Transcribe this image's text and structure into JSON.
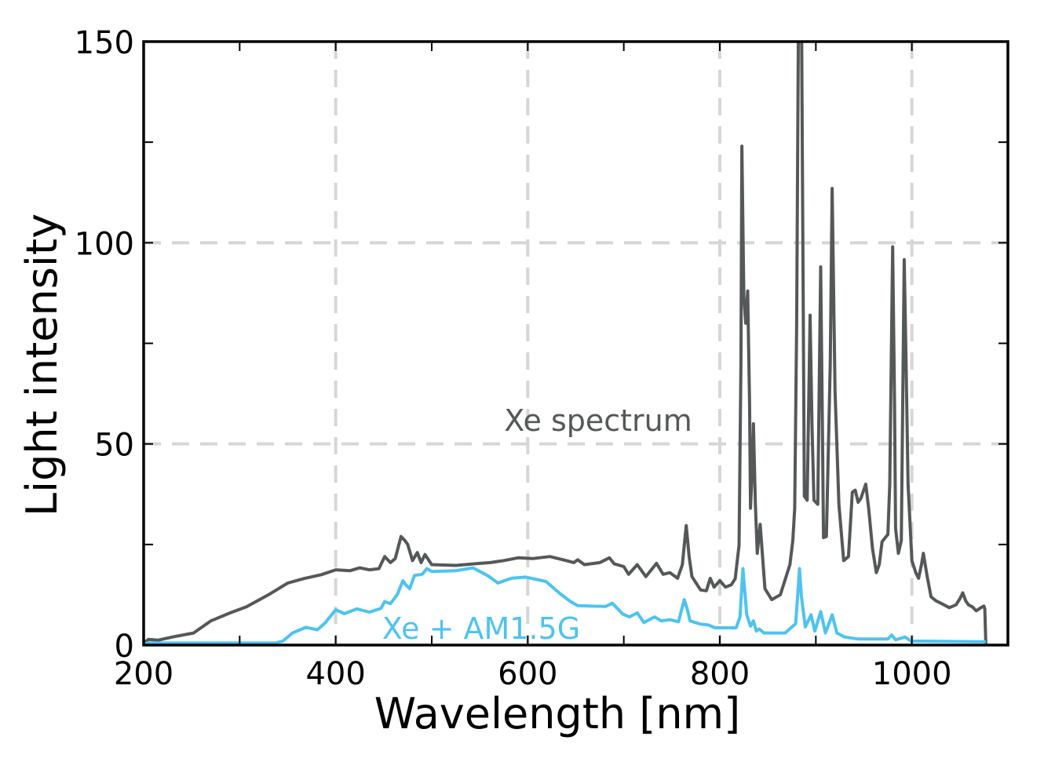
{
  "chart_data": {
    "type": "line",
    "title": "",
    "xlabel": "Wavelength [nm]",
    "ylabel": "Light intensity",
    "xlim": [
      200,
      1100
    ],
    "ylim": [
      0,
      150
    ],
    "grid": true,
    "xticks": [
      200,
      400,
      600,
      800,
      1000
    ],
    "xtick_labels": [
      "200",
      "400",
      "600",
      "800",
      "1000"
    ],
    "xticks_minor": [
      300,
      500,
      700,
      900
    ],
    "yticks": [
      0,
      50,
      100,
      150
    ],
    "ytick_labels": [
      "0",
      "50",
      "100",
      "150"
    ],
    "yticks_minor": [
      25,
      75,
      125
    ],
    "colors": {
      "xe": "#555859",
      "xe_am": "#4dc3f0",
      "grid": "#d6d6d6"
    },
    "series": [
      {
        "name": "Xe spectrum",
        "label": "Xe spectrum",
        "color": "#555859",
        "points": [
          [
            200,
            0.5
          ],
          [
            205,
            1.4
          ],
          [
            215,
            1.2
          ],
          [
            230,
            2
          ],
          [
            252,
            3
          ],
          [
            270,
            6
          ],
          [
            290,
            8
          ],
          [
            307,
            9.5
          ],
          [
            330,
            12.5
          ],
          [
            350,
            15.4
          ],
          [
            368,
            16.6
          ],
          [
            385,
            17.5
          ],
          [
            400,
            18.7
          ],
          [
            415,
            18.5
          ],
          [
            425,
            19.2
          ],
          [
            435,
            18.7
          ],
          [
            445,
            19
          ],
          [
            451,
            22
          ],
          [
            457,
            20.5
          ],
          [
            462,
            21.5
          ],
          [
            468,
            27
          ],
          [
            472,
            26
          ],
          [
            475,
            25
          ],
          [
            480,
            21
          ],
          [
            485,
            23
          ],
          [
            489,
            20.5
          ],
          [
            493,
            22.5
          ],
          [
            500,
            20
          ],
          [
            525,
            19.8
          ],
          [
            545,
            20.2
          ],
          [
            561,
            20.5
          ],
          [
            575,
            21
          ],
          [
            590,
            21.7
          ],
          [
            605,
            21.5
          ],
          [
            623,
            22
          ],
          [
            640,
            21
          ],
          [
            648,
            20.5
          ],
          [
            652,
            21.2
          ],
          [
            659,
            20
          ],
          [
            675,
            20.5
          ],
          [
            685,
            21.7
          ],
          [
            690,
            20.2
          ],
          [
            700,
            19.5
          ],
          [
            705,
            17.6
          ],
          [
            714,
            20
          ],
          [
            723,
            17
          ],
          [
            734,
            20.3
          ],
          [
            741,
            17.6
          ],
          [
            748,
            18
          ],
          [
            756,
            16.6
          ],
          [
            761,
            20
          ],
          [
            765,
            29.7
          ],
          [
            768,
            22
          ],
          [
            771,
            17
          ],
          [
            780,
            13.7
          ],
          [
            786,
            13.5
          ],
          [
            790,
            16.6
          ],
          [
            794,
            14.4
          ],
          [
            800,
            16
          ],
          [
            806,
            14.4
          ],
          [
            812,
            15
          ],
          [
            816,
            16.5
          ],
          [
            820,
            24.8
          ],
          [
            822,
            70
          ],
          [
            823,
            124
          ],
          [
            825,
            86.6
          ],
          [
            827,
            80
          ],
          [
            829,
            88
          ],
          [
            831,
            60
          ],
          [
            832,
            34
          ],
          [
            834,
            45
          ],
          [
            835,
            55
          ],
          [
            837,
            35
          ],
          [
            839,
            22.8
          ],
          [
            842,
            30
          ],
          [
            847,
            14
          ],
          [
            854,
            11.3
          ],
          [
            863,
            12.5
          ],
          [
            873,
            20
          ],
          [
            876,
            26
          ],
          [
            878,
            34
          ],
          [
            880,
            80
          ],
          [
            882,
            160
          ],
          [
            885,
            160
          ],
          [
            887,
            80
          ],
          [
            888,
            37
          ],
          [
            891,
            36
          ],
          [
            894,
            82
          ],
          [
            896,
            55
          ],
          [
            898,
            36
          ],
          [
            902,
            35
          ],
          [
            905,
            94
          ],
          [
            907,
            50
          ],
          [
            908,
            26.7
          ],
          [
            911,
            27
          ],
          [
            915,
            70
          ],
          [
            917,
            113.5
          ],
          [
            920,
            63
          ],
          [
            924,
            35
          ],
          [
            929,
            21
          ],
          [
            934,
            22
          ],
          [
            938,
            38
          ],
          [
            941,
            38.5
          ],
          [
            944,
            35.5
          ],
          [
            947,
            36.5
          ],
          [
            952,
            40
          ],
          [
            955,
            34
          ],
          [
            959,
            24
          ],
          [
            963,
            18
          ],
          [
            966,
            20
          ],
          [
            969,
            25.7
          ],
          [
            975,
            27.5
          ],
          [
            977,
            40
          ],
          [
            980,
            99
          ],
          [
            982,
            60
          ],
          [
            983,
            29
          ],
          [
            986,
            22.8
          ],
          [
            989,
            26
          ],
          [
            992,
            95.8
          ],
          [
            994,
            70
          ],
          [
            996,
            40
          ],
          [
            1000,
            21
          ],
          [
            1004,
            18
          ],
          [
            1007,
            16.6
          ],
          [
            1010,
            20
          ],
          [
            1012,
            22.8
          ],
          [
            1016,
            17
          ],
          [
            1020,
            12
          ],
          [
            1025,
            11
          ],
          [
            1031,
            10.3
          ],
          [
            1039,
            9.3
          ],
          [
            1046,
            10
          ],
          [
            1050,
            11.5
          ],
          [
            1053,
            13
          ],
          [
            1056,
            11
          ],
          [
            1059,
            10
          ],
          [
            1063,
            9.5
          ],
          [
            1067,
            8.5
          ],
          [
            1072,
            9.3
          ],
          [
            1075,
            9.7
          ],
          [
            1076,
            9
          ],
          [
            1077,
            0
          ]
        ]
      },
      {
        "name": "Xe + AM1.5G",
        "label": "Xe + AM1.5G",
        "color": "#4dc3f0",
        "points": [
          [
            200,
            0.3
          ],
          [
            205,
            0.5
          ],
          [
            250,
            0.5
          ],
          [
            300,
            0.5
          ],
          [
            337,
            0.5
          ],
          [
            345,
            1
          ],
          [
            355,
            3
          ],
          [
            369,
            4.4
          ],
          [
            381,
            3.8
          ],
          [
            389,
            5.5
          ],
          [
            400,
            8.8
          ],
          [
            409,
            7.8
          ],
          [
            422,
            9
          ],
          [
            435,
            8.2
          ],
          [
            447,
            9.1
          ],
          [
            451,
            10.8
          ],
          [
            457,
            10.3
          ],
          [
            464,
            12.5
          ],
          [
            470,
            16
          ],
          [
            473,
            15
          ],
          [
            477,
            14
          ],
          [
            482,
            17.3
          ],
          [
            490,
            17.6
          ],
          [
            495,
            19
          ],
          [
            500,
            18.3
          ],
          [
            525,
            18.5
          ],
          [
            543,
            19.2
          ],
          [
            558,
            17.3
          ],
          [
            569,
            15.4
          ],
          [
            583,
            16.6
          ],
          [
            598,
            16.9
          ],
          [
            619,
            15.8
          ],
          [
            633,
            12.9
          ],
          [
            644,
            10.9
          ],
          [
            652,
            9.8
          ],
          [
            681,
            9.6
          ],
          [
            688,
            10.4
          ],
          [
            699,
            7.7
          ],
          [
            706,
            7
          ],
          [
            714,
            8
          ],
          [
            721,
            5.6
          ],
          [
            732,
            7
          ],
          [
            739,
            6
          ],
          [
            748,
            6.3
          ],
          [
            757,
            5.8
          ],
          [
            763,
            11.3
          ],
          [
            766,
            9
          ],
          [
            769,
            6
          ],
          [
            780,
            5.2
          ],
          [
            788,
            5
          ],
          [
            795,
            4.3
          ],
          [
            808,
            4.3
          ],
          [
            817,
            4.3
          ],
          [
            821,
            7
          ],
          [
            824,
            19
          ],
          [
            828,
            7.5
          ],
          [
            832,
            4.7
          ],
          [
            835,
            6
          ],
          [
            838,
            3.5
          ],
          [
            841,
            4
          ],
          [
            846,
            3
          ],
          [
            868,
            3
          ],
          [
            879,
            5.3
          ],
          [
            881,
            12
          ],
          [
            883,
            19
          ],
          [
            885,
            12
          ],
          [
            889,
            4.5
          ],
          [
            895,
            7.5
          ],
          [
            899,
            3.5
          ],
          [
            905,
            8.3
          ],
          [
            910,
            3
          ],
          [
            917,
            7.5
          ],
          [
            922,
            3
          ],
          [
            930,
            2
          ],
          [
            944,
            1.5
          ],
          [
            960,
            1.5
          ],
          [
            975,
            1.5
          ],
          [
            979,
            2.5
          ],
          [
            983,
            1.3
          ],
          [
            993,
            2
          ],
          [
            999,
            1
          ],
          [
            1040,
            0.9
          ],
          [
            1077,
            0.8
          ]
        ]
      }
    ]
  }
}
